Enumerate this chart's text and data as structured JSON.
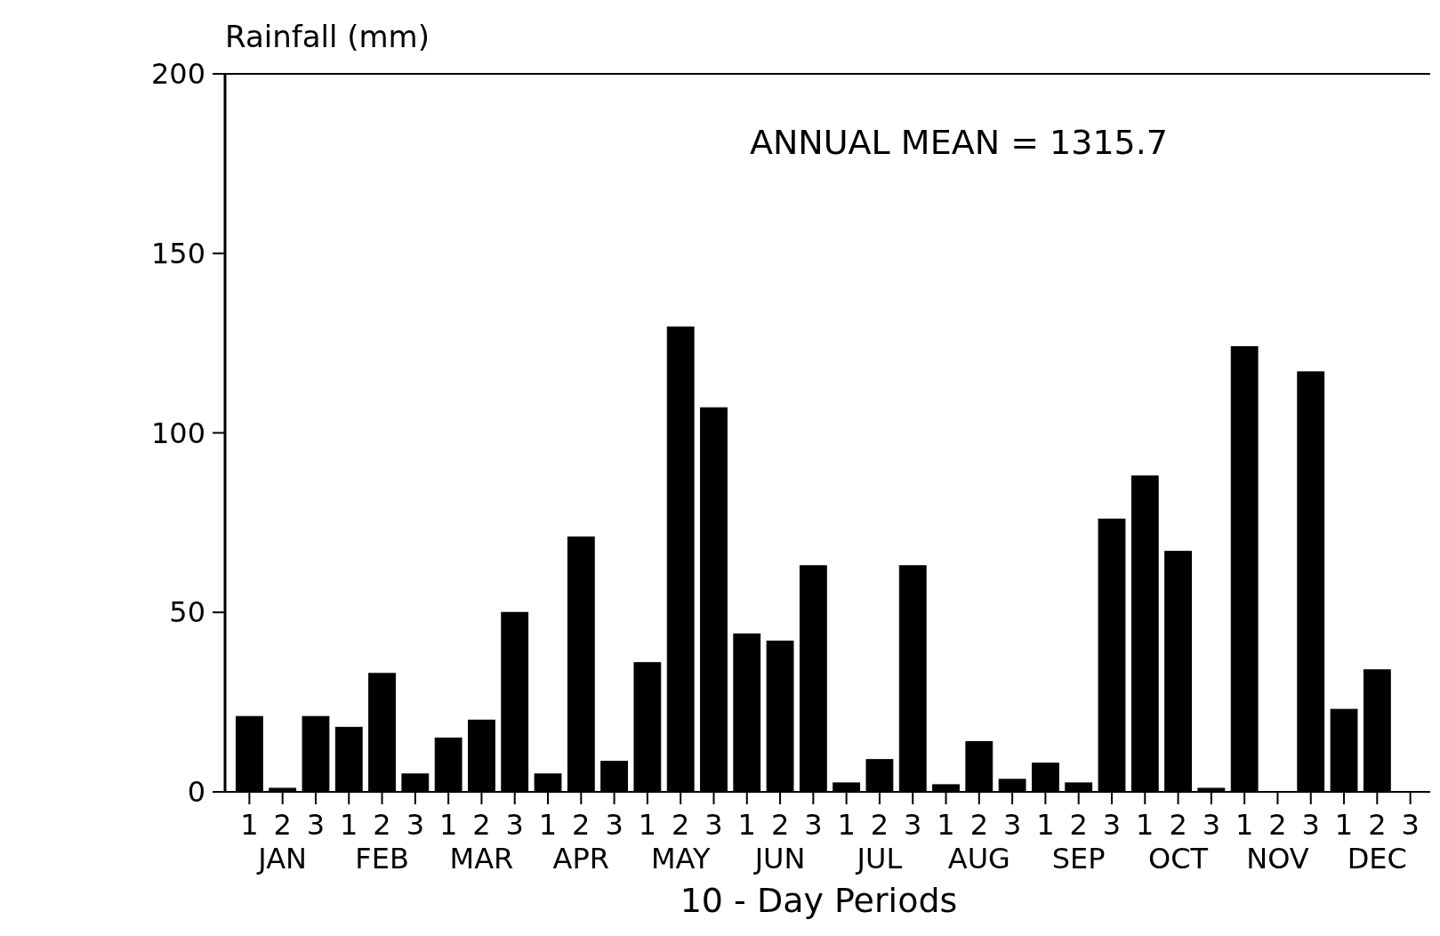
{
  "chart_data": {
    "type": "bar",
    "ylabel": "Rainfall (mm)",
    "xlabel": "10 - Day Periods",
    "categories": [
      "1",
      "2\nJAN",
      "3",
      "1",
      "2\nFEB",
      "3",
      "1",
      "2\nMAR",
      "3",
      "1",
      "2\nAPR",
      "3",
      "1",
      "2\nMAY",
      "3",
      "1",
      "2\nJUN",
      "3",
      "1",
      "2\nJUL",
      "3",
      "1",
      "2\nAUG",
      "3",
      "1",
      "2\nSEP",
      "3",
      "1",
      "2\nOCT",
      "3",
      "1",
      "2\nNOV",
      "3",
      "1",
      "2\nDEC",
      "3"
    ],
    "values": [
      21,
      1,
      21,
      18,
      33,
      5,
      15,
      20,
      50,
      5,
      71,
      8.5,
      36,
      129.5,
      107,
      44,
      42,
      63,
      2.5,
      9,
      63,
      2,
      14,
      3.5,
      8,
      2.5,
      76,
      88,
      67,
      1,
      124,
      0,
      117,
      23,
      34,
      0
    ],
    "color": "#000000",
    "ylim": [
      0,
      200
    ],
    "yticks": [
      0,
      50,
      100,
      150,
      200
    ],
    "grid": false,
    "annotations": [
      "ANNUAL MEAN = 1315.7"
    ]
  }
}
